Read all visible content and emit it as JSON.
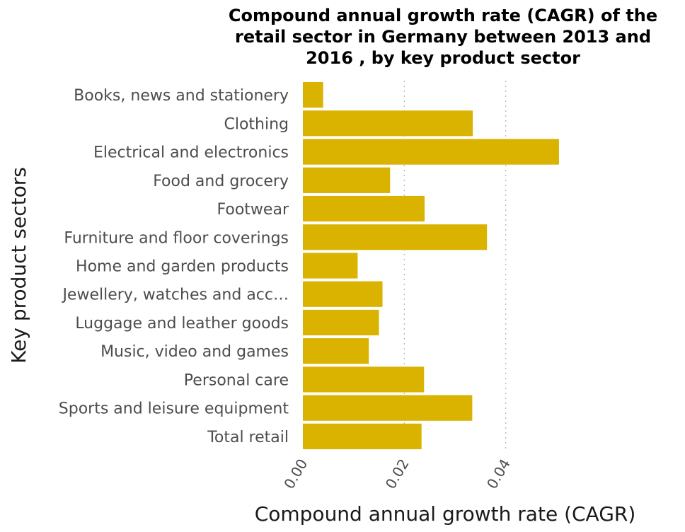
{
  "chart_data": {
    "type": "bar",
    "orientation": "horizontal",
    "title_lines": [
      "Compound annual growth rate (CAGR) of the",
      "retail sector in Germany between 2013 and",
      "2016 , by key product sector"
    ],
    "xlabel": "Compound annual growth rate (CAGR)",
    "ylabel": "Key product sectors",
    "categories": [
      "Books, news and stationery",
      "Clothing",
      "Electrical and electronics",
      "Food and grocery",
      "Footwear",
      "Furniture and floor coverings",
      "Home and garden products",
      "Jewellery, watches and acc…",
      "Luggage and leather goods",
      "Music, video and games",
      "Personal care",
      "Sports and leisure equipment",
      "Total retail"
    ],
    "values": [
      0.004,
      0.0335,
      0.0505,
      0.0172,
      0.024,
      0.0363,
      0.0108,
      0.0157,
      0.015,
      0.013,
      0.0239,
      0.0334,
      0.0234
    ],
    "xlim": [
      0,
      0.06
    ],
    "xticks": [
      0,
      0.02,
      0.04
    ],
    "xtick_labels": [
      "0.00",
      "0.02",
      "0.04"
    ],
    "grid": true,
    "bar_color": "#d9b300"
  }
}
